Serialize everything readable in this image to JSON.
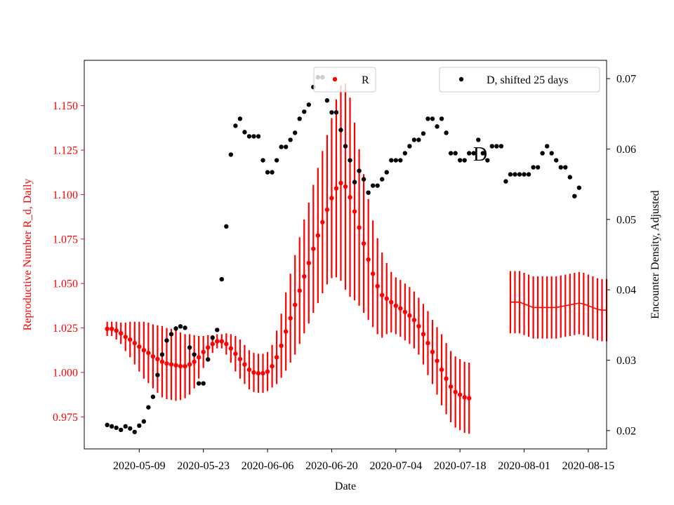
{
  "chart_data": {
    "type": "scatter",
    "title": "",
    "xlabel": "Date",
    "ylabel_left": "Reproductive Number R_d, Daily",
    "ylabel_right": "Encounter Density, Adjusted",
    "annotation": "D",
    "x_tick_labels": [
      "2020-05-09",
      "2020-05-23",
      "2020-06-06",
      "2020-06-20",
      "2020-07-04",
      "2020-07-18",
      "2020-08-01",
      "2020-08-15"
    ],
    "y_left_ticks": [
      "0.975",
      "1.000",
      "1.025",
      "1.050",
      "1.075",
      "1.100",
      "1.125",
      "1.150"
    ],
    "y_right_ticks": [
      "0.02",
      "0.03",
      "0.04",
      "0.05",
      "0.06",
      "0.07"
    ],
    "x_range": [
      "2020-04-27",
      "2020-08-19"
    ],
    "y_left_range": [
      0.957,
      1.1755
    ],
    "y_right_range": [
      0.0174,
      0.0726
    ],
    "colors": {
      "r_series": "#ff0000",
      "d_series": "#000000",
      "left_axis": "#ff0000",
      "right_axis": "#000000"
    },
    "legend_left": {
      "label": "R",
      "placement": "top-center"
    },
    "legend_right": {
      "label": "D, shifted 25 days",
      "placement": "top-right"
    },
    "series": [
      {
        "name": "R",
        "axis": "left",
        "x_start": "2020-05-02",
        "values": [
          1.0245,
          1.0245,
          1.0235,
          1.022,
          1.02,
          1.0185,
          1.0165,
          1.0145,
          1.0125,
          1.011,
          1.009,
          1.0075,
          1.006,
          1.005,
          1.0045,
          1.004,
          1.0035,
          1.0035,
          1.0045,
          1.006,
          1.0085,
          1.0115,
          1.014,
          1.016,
          1.0175,
          1.0175,
          1.016,
          1.0135,
          1.0105,
          1.0075,
          1.0045,
          1.0015,
          1.0,
          0.9995,
          0.9995,
          1.0005,
          1.0035,
          1.0085,
          1.015,
          1.023,
          1.0305,
          1.038,
          1.046,
          1.054,
          1.0615,
          1.0695,
          1.077,
          1.0845,
          1.0915,
          1.098,
          1.1035,
          1.1065,
          1.1045,
          1.0985,
          1.0905,
          1.0815,
          1.0725,
          1.0635,
          1.0555,
          1.0485,
          1.0435,
          1.0415,
          1.0395,
          1.0375,
          1.036,
          1.034,
          1.032,
          1.0295,
          1.026,
          1.0215,
          1.0165,
          1.0115,
          1.0065,
          1.0015,
          0.9965,
          0.992,
          0.989,
          0.9875,
          0.986,
          0.9855
        ],
        "errors": [
          0.004,
          0.004,
          0.005,
          0.006,
          0.008,
          0.01,
          0.012,
          0.014,
          0.016,
          0.017,
          0.018,
          0.019,
          0.02,
          0.02,
          0.02,
          0.02,
          0.019,
          0.018,
          0.017,
          0.015,
          0.012,
          0.009,
          0.007,
          0.005,
          0.004,
          0.004,
          0.006,
          0.008,
          0.01,
          0.011,
          0.011,
          0.011,
          0.011,
          0.011,
          0.011,
          0.011,
          0.012,
          0.015,
          0.018,
          0.022,
          0.025,
          0.028,
          0.03,
          0.032,
          0.034,
          0.036,
          0.038,
          0.04,
          0.042,
          0.045,
          0.05,
          0.055,
          0.058,
          0.056,
          0.05,
          0.044,
          0.039,
          0.034,
          0.03,
          0.027,
          0.024,
          0.02,
          0.017,
          0.016,
          0.016,
          0.016,
          0.016,
          0.016,
          0.016,
          0.017,
          0.018,
          0.018,
          0.019,
          0.02,
          0.02,
          0.02,
          0.02,
          0.02,
          0.02,
          0.02
        ]
      },
      {
        "name": "R",
        "axis": "left",
        "style": "flat",
        "x_start": "2020-07-29",
        "values": [
          1.0395,
          1.0395,
          1.0395,
          1.0385,
          1.0375,
          1.0365,
          1.0365,
          1.0365,
          1.0365,
          1.0365,
          1.0365,
          1.037,
          1.0375,
          1.038,
          1.0385,
          1.039,
          1.0385,
          1.0375,
          1.0365,
          1.0355,
          1.035,
          1.035
        ],
        "errors": [
          0.0175,
          0.0175,
          0.0175,
          0.0175,
          0.0175,
          0.0175,
          0.0175,
          0.0175,
          0.0175,
          0.0175,
          0.0175,
          0.0175,
          0.0175,
          0.0175,
          0.0175,
          0.0175,
          0.0175,
          0.0175,
          0.0175,
          0.0175,
          0.0175,
          0.0175
        ]
      },
      {
        "name": "D, shifted 25 days",
        "axis": "right",
        "x_start": "2020-05-02",
        "values": [
          0.0208,
          0.0206,
          0.0204,
          0.0201,
          0.0206,
          0.0203,
          0.0198,
          0.0207,
          0.0213,
          0.0233,
          0.0248,
          0.0279,
          0.0308,
          0.0328,
          0.0337,
          0.0345,
          0.0348,
          0.0346,
          0.0318,
          0.0308,
          0.0267,
          0.0267,
          0.0301,
          0.0332,
          0.0343,
          0.0415,
          0.049,
          0.0592,
          0.0633,
          0.0643,
          0.0624,
          0.0618,
          0.0618,
          0.0618,
          0.0584,
          0.0567,
          0.0567,
          0.0584,
          0.0603,
          0.0603,
          0.0613,
          0.0623,
          0.0643,
          0.0653,
          0.0663,
          0.0688,
          0.0702,
          0.0702,
          0.0669,
          0.0652,
          0.0652,
          0.0627,
          0.0604,
          0.0584,
          0.0553,
          0.0569,
          0.0557,
          0.0538,
          0.0548,
          0.0548,
          0.0557,
          0.0567,
          0.0584,
          0.0584,
          0.0584,
          0.0594,
          0.0604,
          0.0613,
          0.0613,
          0.0622,
          0.0643,
          0.0643,
          0.0632,
          0.0643,
          0.0623,
          0.0594,
          0.0594,
          0.0584,
          0.0584,
          0.0594,
          0.0594,
          0.0613,
          0.0594,
          0.0584,
          0.0604,
          0.0604,
          0.0604,
          0.0554,
          0.0564,
          0.0564,
          0.0564,
          0.0564,
          0.0564,
          0.0574,
          0.0574,
          0.0594,
          0.0604,
          0.0594,
          0.0584,
          0.0574,
          0.0574,
          0.056,
          0.0533,
          0.0545
        ]
      }
    ]
  }
}
